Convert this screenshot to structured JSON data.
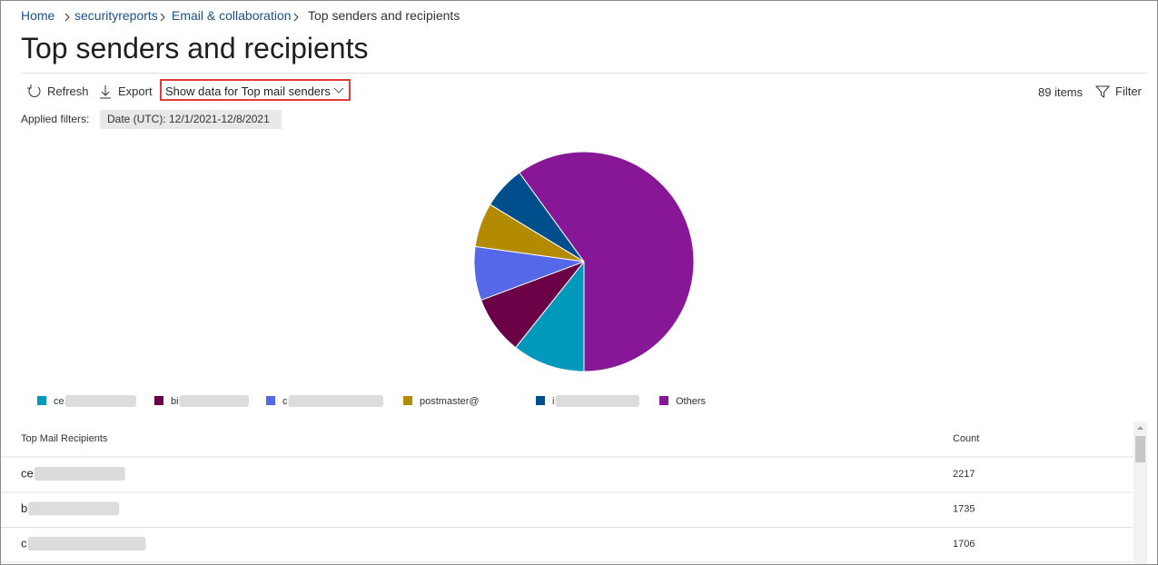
{
  "breadcrumb": [
    "Home",
    "securityreports",
    "Email & collaboration",
    "Top senders and recipients"
  ],
  "title": "Top senders and recipients",
  "toolbar": {
    "refresh": "Refresh",
    "export": "Export",
    "dropdown": "Show data for Top mail senders",
    "items": "89 items",
    "filter": "Filter"
  },
  "filters": {
    "label": "Applied filters:",
    "date": "Date (UTC): 12/1/2021-12/8/2021"
  },
  "chart_data": {
    "type": "pie",
    "categories": [
      "ce",
      "bi",
      "c",
      "postmaster@",
      "i",
      "Others"
    ],
    "values": [
      10.7,
      8.6,
      7.9,
      6.5,
      6.3,
      60
    ],
    "colors": [
      "#0099bc",
      "#6b0046",
      "#5468e8",
      "#b38b00",
      "#004e8c",
      "#881798"
    ]
  },
  "table": {
    "headers": [
      "Top Mail Recipients",
      "Count"
    ],
    "rows": [
      [
        "ce",
        2217
      ],
      [
        "b",
        1735
      ],
      [
        "c",
        1706
      ]
    ]
  }
}
